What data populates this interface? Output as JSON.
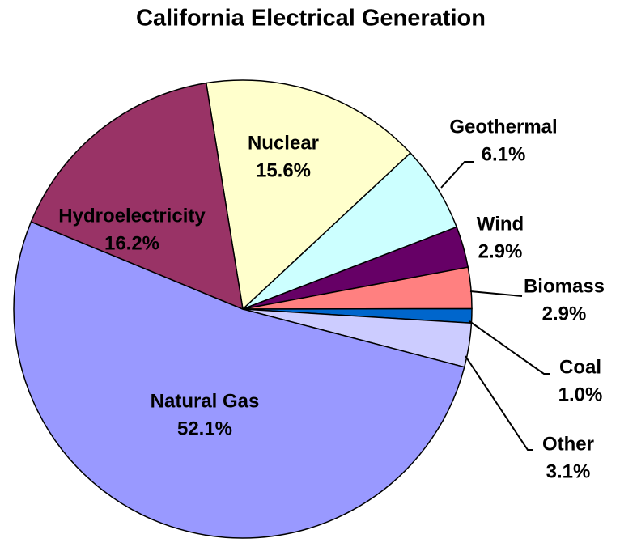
{
  "chart_data": {
    "type": "pie",
    "title": "California Electrical Generation",
    "categories": [
      "Nuclear",
      "Geothermal",
      "Wind",
      "Biomass",
      "Coal",
      "Other",
      "Natural Gas",
      "Hydroelectricity"
    ],
    "values": [
      15.6,
      6.1,
      2.9,
      2.9,
      1.0,
      3.1,
      52.1,
      16.2
    ],
    "value_labels": [
      "15.6%",
      "6.1%",
      "2.9%",
      "2.9%",
      "1.0%",
      "3.1%",
      "52.1%",
      "16.2%"
    ],
    "colors": [
      "#ffffcc",
      "#ccffff",
      "#660066",
      "#ff8080",
      "#0066cc",
      "#ccccff",
      "#9999ff",
      "#993366"
    ]
  }
}
